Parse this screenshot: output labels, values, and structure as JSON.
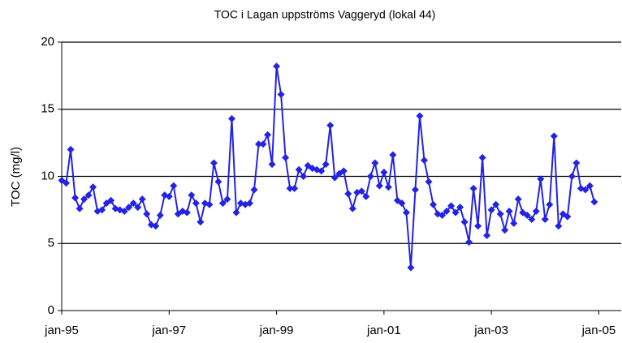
{
  "chart_data": {
    "type": "line",
    "title": "TOC i Lagan uppströms Vaggeryd (lokal 44)",
    "y_label": "TOC (mg/l)",
    "x": [
      "1995-01",
      "1995-02",
      "1995-03",
      "1995-04",
      "1995-05",
      "1995-06",
      "1995-07",
      "1995-08",
      "1995-09",
      "1995-10",
      "1995-11",
      "1995-12",
      "1996-01",
      "1996-02",
      "1996-03",
      "1996-04",
      "1996-05",
      "1996-06",
      "1996-07",
      "1996-08",
      "1996-09",
      "1996-10",
      "1996-11",
      "1996-12",
      "1997-01",
      "1997-02",
      "1997-03",
      "1997-04",
      "1997-05",
      "1997-06",
      "1997-07",
      "1997-08",
      "1997-09",
      "1997-10",
      "1997-11",
      "1997-12",
      "1998-01",
      "1998-02",
      "1998-03",
      "1998-04",
      "1998-05",
      "1998-06",
      "1998-07",
      "1998-08",
      "1998-09",
      "1998-10",
      "1998-11",
      "1998-12",
      "1999-01",
      "1999-02",
      "1999-03",
      "1999-04",
      "1999-05",
      "1999-06",
      "1999-07",
      "1999-08",
      "1999-09",
      "1999-10",
      "1999-11",
      "1999-12",
      "2000-01",
      "2000-02",
      "2000-03",
      "2000-04",
      "2000-05",
      "2000-06",
      "2000-07",
      "2000-08",
      "2000-09",
      "2000-10",
      "2000-11",
      "2000-12",
      "2001-01",
      "2001-02",
      "2001-03",
      "2001-04",
      "2001-05",
      "2001-06",
      "2001-07",
      "2001-08",
      "2001-09",
      "2001-10",
      "2001-11",
      "2001-12",
      "2002-01",
      "2002-02",
      "2002-03",
      "2002-04",
      "2002-05",
      "2002-06",
      "2002-07",
      "2002-08",
      "2002-09",
      "2002-10",
      "2002-11",
      "2002-12",
      "2003-01",
      "2003-02",
      "2003-03",
      "2003-04",
      "2003-05",
      "2003-06",
      "2003-07",
      "2003-08",
      "2003-09",
      "2003-10",
      "2003-11",
      "2003-12",
      "2004-01",
      "2004-02",
      "2004-03",
      "2004-04",
      "2004-05",
      "2004-06",
      "2004-07",
      "2004-08",
      "2004-09",
      "2004-10",
      "2004-11",
      "2004-12"
    ],
    "series": [
      {
        "name": "TOC",
        "color": "#2323e6",
        "values": [
          9.7,
          9.5,
          12.0,
          8.4,
          7.6,
          8.3,
          8.6,
          9.2,
          7.4,
          7.5,
          8.0,
          8.2,
          7.6,
          7.5,
          7.4,
          7.7,
          8.0,
          7.7,
          8.3,
          7.2,
          6.4,
          6.3,
          7.1,
          8.6,
          8.5,
          9.3,
          7.2,
          7.4,
          7.3,
          8.6,
          8.0,
          6.6,
          8.0,
          7.9,
          11.0,
          9.6,
          8.0,
          8.3,
          14.3,
          7.3,
          8.0,
          7.9,
          8.0,
          9.0,
          12.4,
          12.4,
          13.1,
          10.9,
          18.2,
          16.1,
          11.4,
          9.1,
          9.1,
          10.5,
          10.0,
          10.8,
          10.6,
          10.5,
          10.4,
          10.9,
          13.8,
          9.9,
          10.2,
          10.4,
          8.7,
          7.6,
          8.8,
          8.9,
          8.5,
          10.0,
          11.0,
          9.3,
          10.3,
          9.2,
          11.6,
          8.2,
          8.0,
          7.3,
          3.2,
          9.0,
          14.5,
          11.2,
          9.6,
          7.9,
          7.2,
          7.1,
          7.4,
          7.8,
          7.3,
          7.7,
          6.6,
          5.1,
          9.1,
          6.3,
          11.4,
          5.6,
          7.5,
          7.9,
          7.2,
          6.0,
          7.4,
          6.5,
          8.3,
          7.3,
          7.1,
          6.8,
          7.4,
          9.8,
          6.8,
          7.9,
          13.0,
          6.3,
          7.2,
          7.0,
          10.0,
          11.0,
          9.1,
          9.0,
          9.3,
          8.1
        ]
      }
    ],
    "xlim": [
      "1995-01",
      "2005-06"
    ],
    "xticks": [
      {
        "value": "1995-01",
        "label": "jan-95"
      },
      {
        "value": "1997-01",
        "label": "jan-97"
      },
      {
        "value": "1999-01",
        "label": "jan-99"
      },
      {
        "value": "2001-01",
        "label": "jan-01"
      },
      {
        "value": "2003-01",
        "label": "jan-03"
      },
      {
        "value": "2005-01",
        "label": "jan-05"
      }
    ],
    "ylim": [
      0,
      20
    ],
    "yticks": [
      0,
      5,
      10,
      15,
      20
    ],
    "grid": true
  }
}
